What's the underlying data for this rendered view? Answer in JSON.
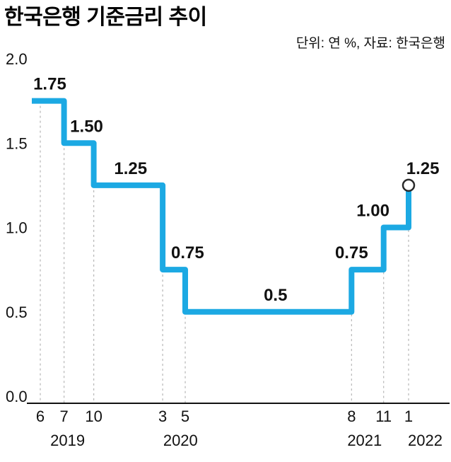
{
  "header": {
    "title": "한국은행 기준금리 추이",
    "note": "단위: 연 %, 자료: 한국은행"
  },
  "chart_data": {
    "type": "line",
    "step": true,
    "title": "한국은행 기준금리 추이",
    "unit_source": "단위: 연 %, 자료: 한국은행",
    "ylabel": "연 %",
    "ylim": [
      0,
      2.0
    ],
    "yticks": [
      "0.0",
      "0.5",
      "1.0",
      "1.5",
      "2.0"
    ],
    "grid": "dashed-event-lines-only",
    "legend": "none",
    "line_color": "#1ca9e3",
    "grid_color": "#b5b5b5",
    "axis_color": "#111111",
    "label_color": "#111111",
    "endpoint": {
      "open_circle": true
    },
    "points": [
      {
        "month": "6",
        "year": "2019",
        "value": 1.75,
        "t": 0,
        "label": "1.75",
        "label_t": 0.8
      },
      {
        "month": "7",
        "year": "2019",
        "value": 1.5,
        "t": 2.0,
        "label": "1.50",
        "label_t": 3.9
      },
      {
        "month": "10",
        "year": "2019",
        "value": 1.25,
        "t": 4.5,
        "label": "1.25",
        "label_t": 7.6
      },
      {
        "month": "3",
        "year": "2020",
        "value": 0.75,
        "t": 10.3,
        "label": "0.75",
        "label_t": 12.4
      },
      {
        "month": "5",
        "year": "2020",
        "value": 0.5,
        "t": 12.2,
        "label": "0.5",
        "label_t": 19.8
      },
      {
        "month": "8",
        "year": "2021",
        "value": 0.75,
        "t": 26.2,
        "label": "0.75",
        "label_t": 26.2
      },
      {
        "month": "11",
        "year": "2021",
        "value": 1.0,
        "t": 28.9,
        "label": "1.00",
        "label_t": 28.0
      },
      {
        "month": "1",
        "year": "2022",
        "value": 1.25,
        "t": 31.0,
        "label": "1.25",
        "label_t": 32.2
      }
    ],
    "year_labels": [
      {
        "text": "2019",
        "t": 2.3
      },
      {
        "text": "2020",
        "t": 11.8
      },
      {
        "text": "2021",
        "t": 27.3
      },
      {
        "text": "2022",
        "t": 32.4
      }
    ]
  }
}
